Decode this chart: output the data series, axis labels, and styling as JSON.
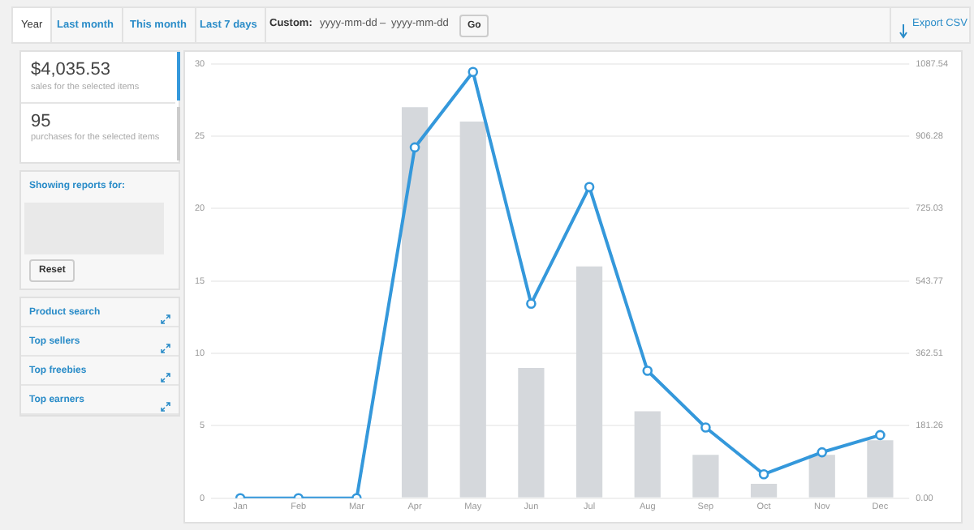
{
  "chart_data": {
    "type": "bar",
    "categories": [
      "Jan",
      "Feb",
      "Mar",
      "Apr",
      "May",
      "Jun",
      "Jul",
      "Aug",
      "Sep",
      "Oct",
      "Nov",
      "Dec"
    ],
    "series": [
      {
        "color": "#d5d8dc",
        "values": [
          0,
          0,
          0,
          27,
          26,
          9,
          16,
          6,
          3,
          1,
          3,
          4
        ]
      },
      {
        "type": "line",
        "axis": "y2",
        "color": "#3498db",
        "values": [
          0,
          0,
          0,
          878,
          1067,
          487,
          779,
          319,
          177,
          60,
          115,
          158
        ]
      }
    ],
    "ylim": [
      0,
      30
    ],
    "yticks": [
      0,
      5,
      10,
      15,
      20,
      25,
      30
    ],
    "y2lim": [
      0,
      1087.54
    ],
    "y2ticks": [
      {
        "value": 0,
        "label": "0.00"
      },
      181.26,
      362.51,
      543.77,
      725.03,
      906.28,
      1087.54
    ],
    "grid": "y",
    "legend": false,
    "marker": "circle",
    "line_style": "solid",
    "annotations": [
      "Year",
      "Last month",
      "This month",
      "Last 7 days",
      "Custom:",
      "yyyy-mm-dd",
      "–",
      "yyyy-mm-dd",
      "Go",
      "Export CSV",
      "$4,035.53",
      "sales for the selected items",
      "95",
      "purchases for the selected items",
      "Showing reports for:",
      "Reset",
      "Product search",
      "Top sellers",
      "Top freebies",
      "Top earners"
    ]
  }
}
